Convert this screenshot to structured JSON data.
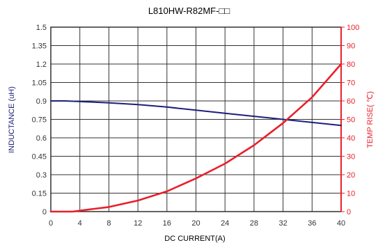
{
  "chart_data": {
    "type": "line",
    "title": "L810HW-R82MF-□□",
    "xlabel": "DC CURRENT(A)",
    "ylabel_left": "INDUCTANCE (uH)",
    "ylabel_right": "TEMP RISE( ℃)",
    "xlim": [
      0,
      40
    ],
    "ylim_left": [
      0,
      1.5
    ],
    "ylim_right": [
      0,
      100
    ],
    "x_ticks": [
      "0",
      "4",
      "8",
      "12",
      "16",
      "20",
      "24",
      "28",
      "32",
      "36",
      "40"
    ],
    "y_ticks_left": [
      "0",
      "0.15",
      "0.3",
      "0.45",
      "0.6",
      "0.75",
      "0.9",
      "1.05",
      "1.2",
      "1.35",
      "1.5"
    ],
    "y_ticks_right": [
      "0",
      "10",
      "20",
      "30",
      "40",
      "50",
      "60",
      "70",
      "80",
      "90",
      "100"
    ],
    "grid": true,
    "colors": {
      "inductance": "#1b1f7a",
      "temp_rise": "#e8202a",
      "left_axis_text": "#1b1f7a",
      "right_axis_text": "#e8202a",
      "grid": "#333333"
    },
    "series": [
      {
        "axis": "left",
        "x": [
          0,
          2,
          4,
          8,
          12,
          16,
          20,
          24,
          28,
          32,
          36,
          40
        ],
        "values": [
          0.9,
          0.9,
          0.895,
          0.885,
          0.87,
          0.85,
          0.825,
          0.8,
          0.775,
          0.75,
          0.725,
          0.7
        ]
      },
      {
        "axis": "right",
        "x": [
          0,
          3,
          4,
          6,
          8,
          12,
          16,
          20,
          24,
          28,
          32,
          36,
          40
        ],
        "values": [
          0,
          0,
          0.5,
          1.5,
          2.5,
          6,
          11,
          18,
          26,
          36,
          48,
          62,
          80
        ]
      }
    ]
  }
}
